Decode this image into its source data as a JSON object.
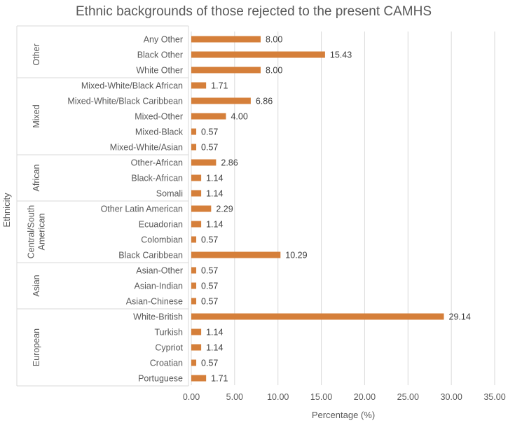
{
  "chart_data": {
    "type": "bar",
    "orientation": "horizontal",
    "title": "Ethnic backgrounds of those rejected to the present CAMHS",
    "xlabel": "Percentage  (%)",
    "ylabel": "Ethnicity",
    "xlim": [
      0,
      35
    ],
    "xticks": [
      "0.00",
      "5.00",
      "10.00",
      "15.00",
      "20.00",
      "25.00",
      "30.00",
      "35.00"
    ],
    "grid": true,
    "bar_color": "#D57F3A",
    "groups": [
      {
        "name": "Other",
        "categories": [
          {
            "label": "Any Other",
            "value": 8.0,
            "display": "8.00"
          },
          {
            "label": "Black Other",
            "value": 15.43,
            "display": "15.43"
          },
          {
            "label": "White Other",
            "value": 8.0,
            "display": "8.00"
          }
        ]
      },
      {
        "name": "Mixed",
        "categories": [
          {
            "label": "Mixed-White/Black African",
            "value": 1.71,
            "display": "1.71"
          },
          {
            "label": "Mixed-White/Black Caribbean",
            "value": 6.86,
            "display": "6.86"
          },
          {
            "label": "Mixed-Other",
            "value": 4.0,
            "display": "4.00"
          },
          {
            "label": "Mixed-Black",
            "value": 0.57,
            "display": "0.57"
          },
          {
            "label": "Mixed-White/Asian",
            "value": 0.57,
            "display": "0.57"
          }
        ]
      },
      {
        "name": "African",
        "categories": [
          {
            "label": "Other-African",
            "value": 2.86,
            "display": "2.86"
          },
          {
            "label": "Black-African",
            "value": 1.14,
            "display": "1.14"
          },
          {
            "label": "Somali",
            "value": 1.14,
            "display": "1.14"
          }
        ]
      },
      {
        "name": "Central/South American",
        "name_lines": [
          "Central/South",
          "American"
        ],
        "categories": [
          {
            "label": "Other Latin American",
            "value": 2.29,
            "display": "2.29"
          },
          {
            "label": "Ecuadorian",
            "value": 1.14,
            "display": "1.14"
          },
          {
            "label": "Colombian",
            "value": 0.57,
            "display": "0.57"
          },
          {
            "label": "Black Caribbean",
            "value": 10.29,
            "display": "10.29"
          }
        ]
      },
      {
        "name": "Asian",
        "categories": [
          {
            "label": "Asian-Other",
            "value": 0.57,
            "display": "0.57"
          },
          {
            "label": "Asian-Indian",
            "value": 0.57,
            "display": "0.57"
          },
          {
            "label": "Asian-Chinese",
            "value": 0.57,
            "display": "0.57"
          }
        ]
      },
      {
        "name": "European",
        "categories": [
          {
            "label": "White-British",
            "value": 29.14,
            "display": "29.14"
          },
          {
            "label": "Turkish",
            "value": 1.14,
            "display": "1.14"
          },
          {
            "label": "Cypriot",
            "value": 1.14,
            "display": "1.14"
          },
          {
            "label": "Croatian",
            "value": 0.57,
            "display": "0.57"
          },
          {
            "label": "Portuguese",
            "value": 1.71,
            "display": "1.71"
          }
        ]
      }
    ]
  }
}
